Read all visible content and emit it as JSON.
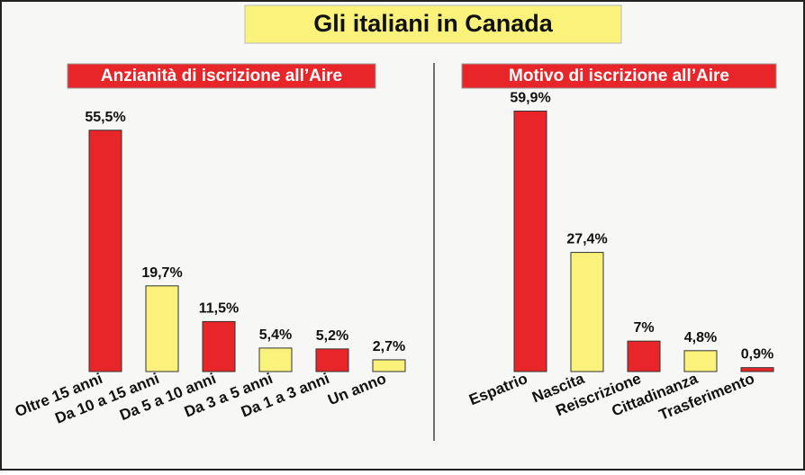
{
  "title": "Gli italiani in Canada",
  "chart_data": [
    {
      "type": "bar",
      "title": "Anzianità di iscrizione all’Aire",
      "categories": [
        "Oltre 15 anni",
        "Da 10 a 15 anni",
        "Da 5 a 10 anni",
        "Da 3 a 5 anni",
        "Da 1 a 3 anni",
        "Un anno"
      ],
      "values": [
        55.5,
        19.7,
        11.5,
        5.4,
        5.2,
        2.7
      ],
      "value_labels": [
        "55,5%",
        "19,7%",
        "11,5%",
        "5,4%",
        "5,2%",
        "2,7%"
      ],
      "colors": [
        "#e8262a",
        "#fbf27c",
        "#e8262a",
        "#fbf27c",
        "#e8262a",
        "#fbf27c"
      ],
      "ylim": [
        0,
        60
      ]
    },
    {
      "type": "bar",
      "title": "Motivo di iscrizione all’Aire",
      "categories": [
        "Espatrio",
        "Nascita",
        "Reiscrizione",
        "Cittadinanza",
        "Trasferimento"
      ],
      "values": [
        59.9,
        27.4,
        7,
        4.8,
        0.9
      ],
      "value_labels": [
        "59,9%",
        "27,4%",
        "7%",
        "4,8%",
        "0,9%"
      ],
      "colors": [
        "#e8262a",
        "#fbf27c",
        "#e8262a",
        "#fbf27c",
        "#e8262a"
      ],
      "ylim": [
        0,
        60
      ]
    }
  ]
}
